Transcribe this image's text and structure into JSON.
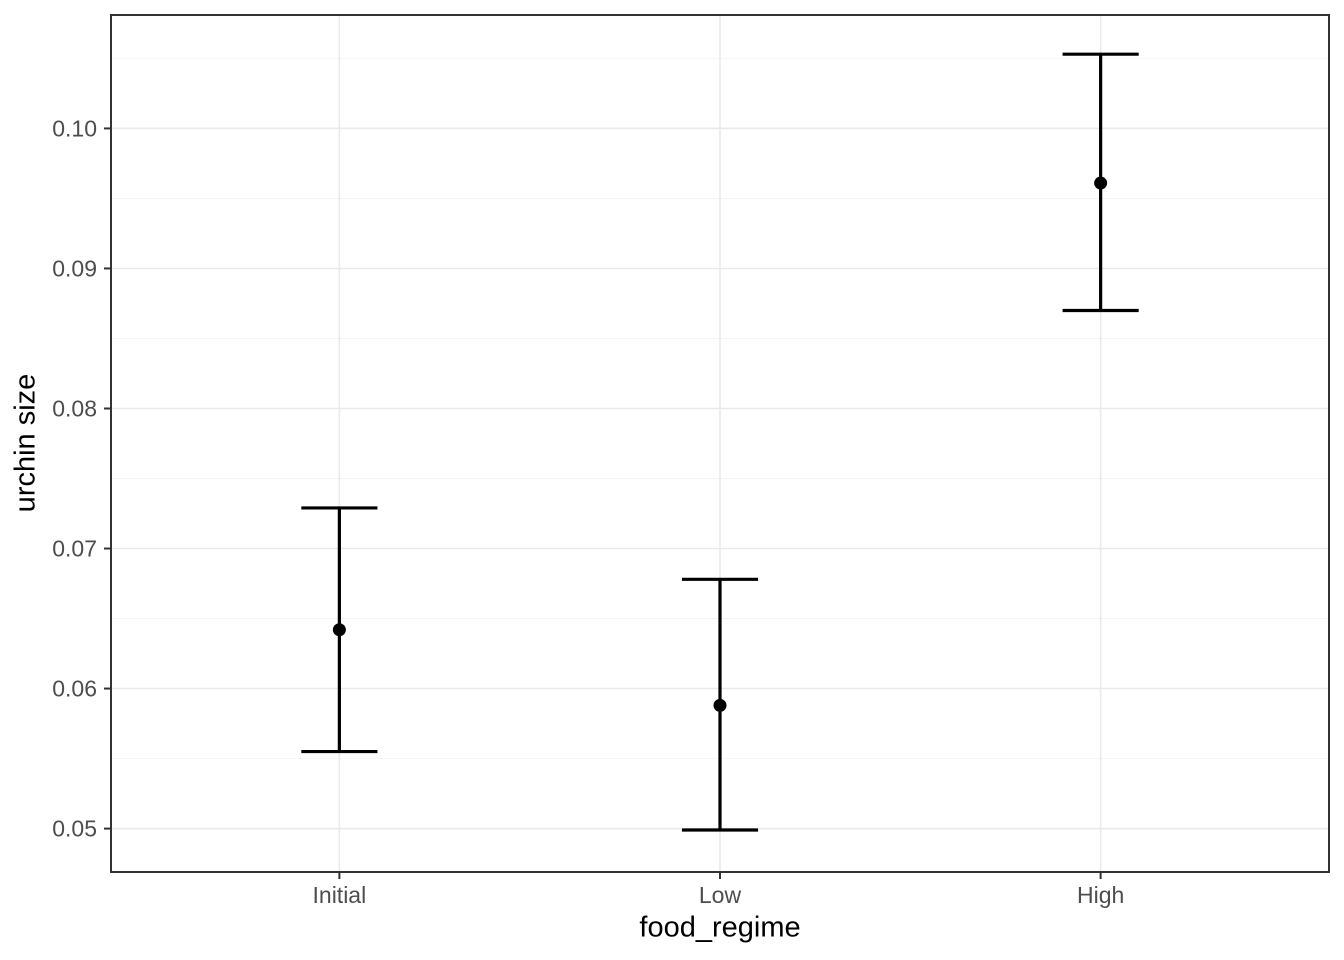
{
  "figure": {
    "background": "#FFFFFF"
  },
  "chart_data": {
    "type": "pointrange",
    "title": "",
    "xlabel": "food_regime",
    "ylabel": "urchin size",
    "categories": [
      "Initial",
      "Low",
      "High"
    ],
    "values": [
      0.0642,
      0.0588,
      0.0961
    ],
    "lower": [
      0.0555,
      0.0499,
      0.087
    ],
    "upper": [
      0.0729,
      0.0678,
      0.1053
    ],
    "ylim": [
      0.0469,
      0.1081
    ],
    "y_major_ticks": [
      0.05,
      0.06,
      0.07,
      0.08,
      0.09,
      0.1
    ],
    "y_tick_labels": [
      "0.05",
      "0.06",
      "0.07",
      "0.08",
      "0.09",
      "0.10"
    ],
    "y_minor_ticks": [
      0.055,
      0.065,
      0.075,
      0.085,
      0.095,
      0.105
    ],
    "grid": "major+minor",
    "legend": "none",
    "colors": {
      "point": "#000000",
      "errorbar": "#000000",
      "grid_major": "#E9E9E9",
      "grid_minor": "#F4F4F4",
      "panel_border": "#333333",
      "tick_mark": "#333333",
      "tick_label": "#4D4D4D",
      "axis_title": "#000000",
      "panel_background": "#FFFFFF"
    }
  }
}
